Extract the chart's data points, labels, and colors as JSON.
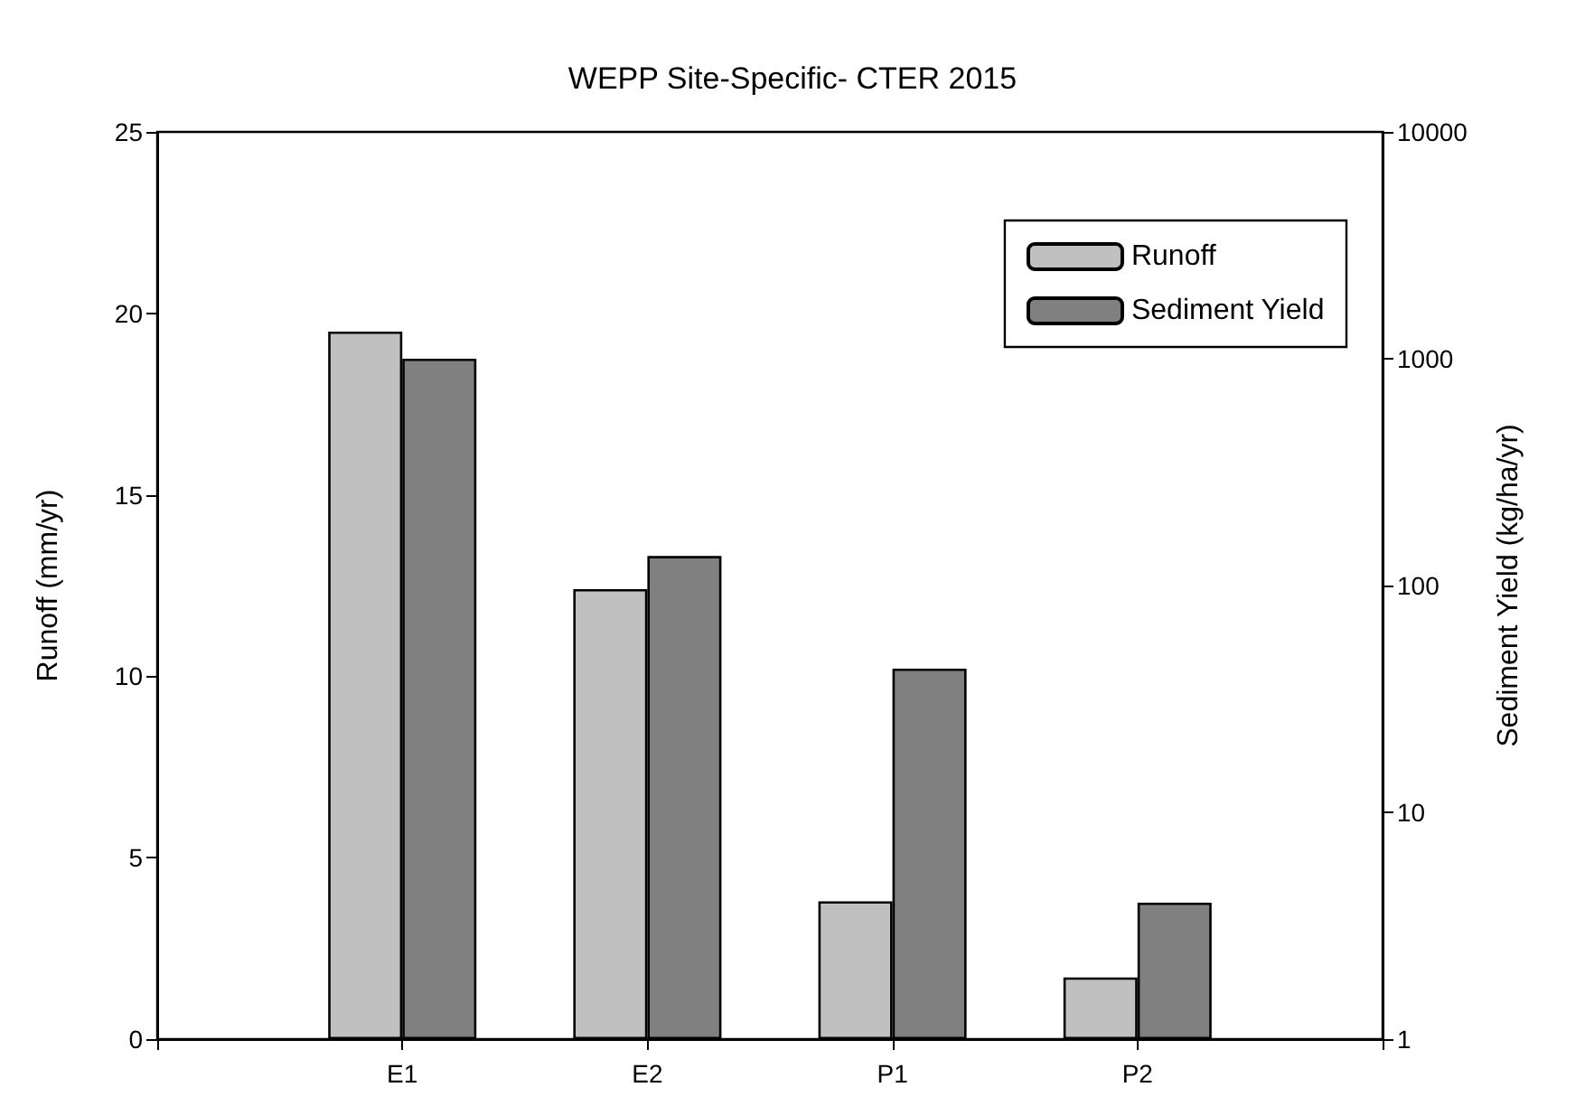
{
  "chart_data": {
    "type": "bar",
    "title": "WEPP Site-Specific- CTER 2015",
    "ylabel": "Runoff (mm/yr)",
    "y2label": "Sediment Yield (kg/ha/yr)",
    "categories": [
      "E1",
      "E2",
      "P1",
      "P2"
    ],
    "series": [
      {
        "name": "Runoff",
        "color": "#c0c0c0",
        "values": [
          19.5,
          12.4,
          3.8,
          1.7
        ]
      },
      {
        "name": "Sediment Yield",
        "color": "#808080",
        "values": [
          1000,
          135,
          43,
          4.0
        ],
        "axis": "y2"
      }
    ],
    "ylim": [
      0,
      25
    ],
    "yticks": [
      0,
      5,
      10,
      15,
      20,
      25
    ],
    "y2lim": [
      1,
      10000
    ],
    "y2ticks": [
      1,
      10,
      100,
      1000,
      10000
    ],
    "log": "y2",
    "legend": "top right"
  }
}
